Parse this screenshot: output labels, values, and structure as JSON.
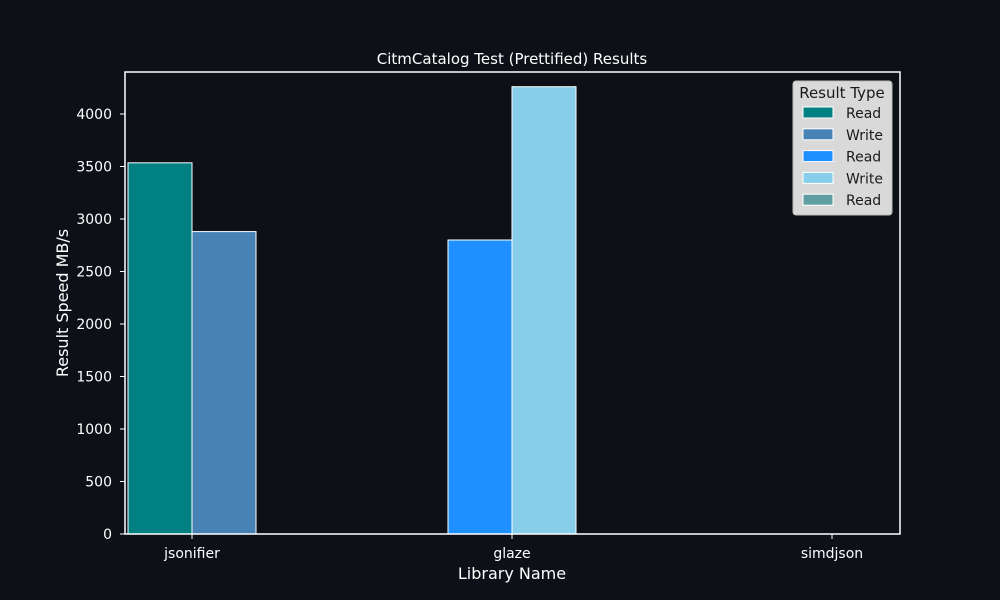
{
  "chart_data": {
    "type": "bar",
    "title": "CitmCatalog Test (Prettified) Results",
    "xlabel": "Library Name",
    "ylabel": "Result Speed MB/s",
    "categories": [
      "jsonifier",
      "glaze",
      "simdjson"
    ],
    "ylim": [
      0,
      4400
    ],
    "yticks": [
      0,
      500,
      1000,
      1500,
      2000,
      2500,
      3000,
      3500,
      4000
    ],
    "grid": false,
    "legend": {
      "title": "Result Type",
      "placement": "top-right",
      "entries": [
        {
          "label": "Read",
          "color": "#008080"
        },
        {
          "label": "Write",
          "color": "#4682b4"
        },
        {
          "label": "Read",
          "color": "#1e90ff"
        },
        {
          "label": "Write",
          "color": "#87ceeb"
        },
        {
          "label": "Read",
          "color": "#5f9ea0"
        }
      ]
    },
    "bars": [
      {
        "category": "jsonifier",
        "type": "Read",
        "value": 3535,
        "color": "#008080",
        "slot": 0
      },
      {
        "category": "jsonifier",
        "type": "Write",
        "value": 2880,
        "color": "#4682b4",
        "slot": 1
      },
      {
        "category": "glaze",
        "type": "Read",
        "value": 2800,
        "color": "#1e90ff",
        "slot": 0
      },
      {
        "category": "glaze",
        "type": "Write",
        "value": 4260,
        "color": "#87ceeb",
        "slot": 1
      },
      {
        "category": "simdjson",
        "type": "Read",
        "value": 0,
        "color": "#5f9ea0",
        "slot": 0
      }
    ],
    "colors": {
      "background": "#0d1017",
      "axis": "#ffffff",
      "text": "#ffffff",
      "bar_edge": "#ffffff",
      "legend_bg": "#d9d9d9"
    }
  }
}
